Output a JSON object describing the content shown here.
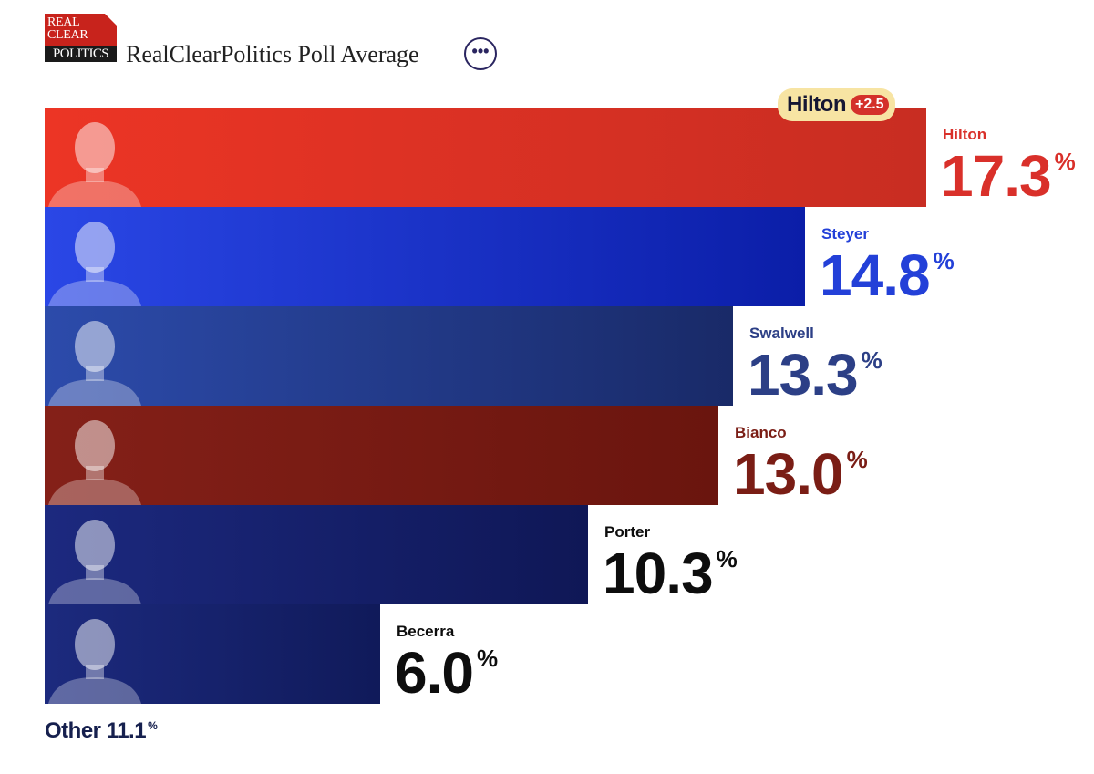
{
  "header": {
    "logo_line1": "REAL",
    "logo_line2": "CLEAR",
    "logo_line3": "POLITICS",
    "title": "RealClearPolitics Poll Average",
    "more_label": "•••"
  },
  "leader": {
    "name": "Hilton",
    "delta": "+2.5"
  },
  "other": {
    "label": "Other",
    "value": "11.1",
    "unit": "%"
  },
  "chart_data": {
    "type": "bar",
    "orientation": "horizontal",
    "title": "RealClearPolitics Poll Average",
    "xlim": [
      0,
      20
    ],
    "categories": [
      "Hilton",
      "Steyer",
      "Swalwell",
      "Bianco",
      "Porter",
      "Becerra"
    ],
    "values": [
      17.3,
      14.8,
      13.3,
      13.0,
      10.3,
      6.0
    ],
    "value_labels": [
      "17.3",
      "14.8",
      "13.3",
      "13.0",
      "10.3",
      "6.0"
    ],
    "unit": "%",
    "bar_colors": [
      [
        "#ec3525",
        "#c82d22"
      ],
      [
        "#2a47e6",
        "#0b1ea8"
      ],
      [
        "#2c4bab",
        "#192a68"
      ],
      [
        "#842018",
        "#6a150e"
      ],
      [
        "#1c297f",
        "#0f1756"
      ],
      [
        "#1c2a7e",
        "#101a5a"
      ]
    ],
    "label_colors": [
      "#d9302a",
      "#2340d8",
      "#2c3f86",
      "#7a1d15",
      "#0d0d0d",
      "#0d0d0d"
    ],
    "grid": false,
    "legend": "none"
  }
}
